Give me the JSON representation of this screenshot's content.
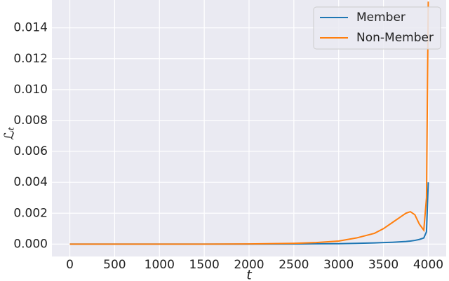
{
  "chart_data": {
    "type": "line",
    "x_label": "t",
    "y_label": "ℒₜ",
    "x": [
      0,
      500,
      1000,
      1500,
      2000,
      2500,
      2750,
      3000,
      3200,
      3400,
      3500,
      3600,
      3700,
      3750,
      3800,
      3850,
      3900,
      3950,
      3980,
      4000
    ],
    "series": [
      {
        "name": "Member",
        "color": "#1f77b4",
        "values": [
          0,
          0,
          0,
          0,
          0,
          1e-05,
          2e-05,
          3e-05,
          5e-05,
          8e-05,
          0.0001,
          0.00012,
          0.00015,
          0.00017,
          0.0002,
          0.00024,
          0.0003,
          0.0004,
          0.0008,
          0.004
        ]
      },
      {
        "name": "Non-Member",
        "color": "#ff7f0e",
        "values": [
          0,
          0,
          0,
          0,
          1e-05,
          5e-05,
          0.0001,
          0.0002,
          0.0004,
          0.0007,
          0.001,
          0.0014,
          0.0018,
          0.002,
          0.0021,
          0.0019,
          0.0013,
          0.0009,
          0.003,
          0.0157
        ]
      }
    ],
    "xlim": [
      -200,
      4200
    ],
    "xticks": [
      0,
      500,
      1000,
      1500,
      2000,
      2500,
      3000,
      3500,
      4000
    ],
    "ylim": [
      -0.0008,
      0.0158
    ],
    "yticks": [
      {
        "value": 0,
        "label": "0.000"
      },
      {
        "value": 0.002,
        "label": "0.002"
      },
      {
        "value": 0.004,
        "label": "0.004"
      },
      {
        "value": 0.006,
        "label": "0.006"
      },
      {
        "value": 0.008,
        "label": "0.008"
      },
      {
        "value": 0.01,
        "label": "0.010"
      },
      {
        "value": 0.012,
        "label": "0.012"
      },
      {
        "value": 0.014,
        "label": "0.014"
      }
    ],
    "grid": true,
    "legend": "upper right"
  }
}
